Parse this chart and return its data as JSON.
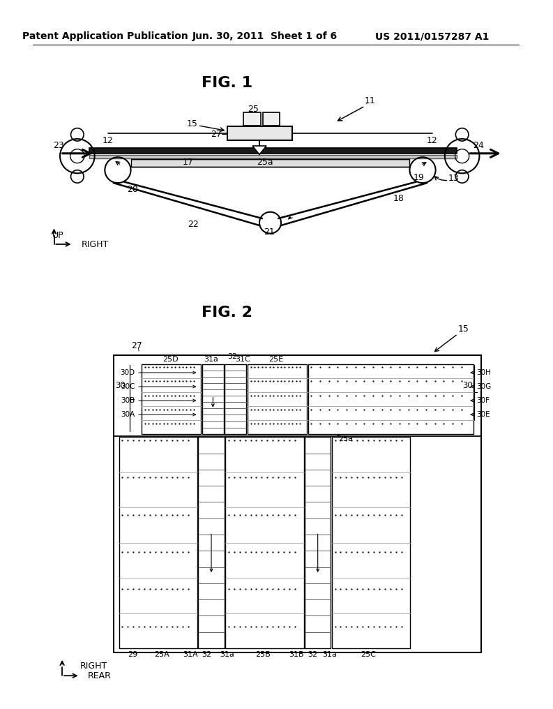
{
  "bg_color": "#ffffff",
  "header_left": "Patent Application Publication",
  "header_mid": "Jun. 30, 2011  Sheet 1 of 6",
  "header_right": "US 2011/0157287 A1",
  "fig1_title": "FIG. 1",
  "fig2_title": "FIG. 2"
}
